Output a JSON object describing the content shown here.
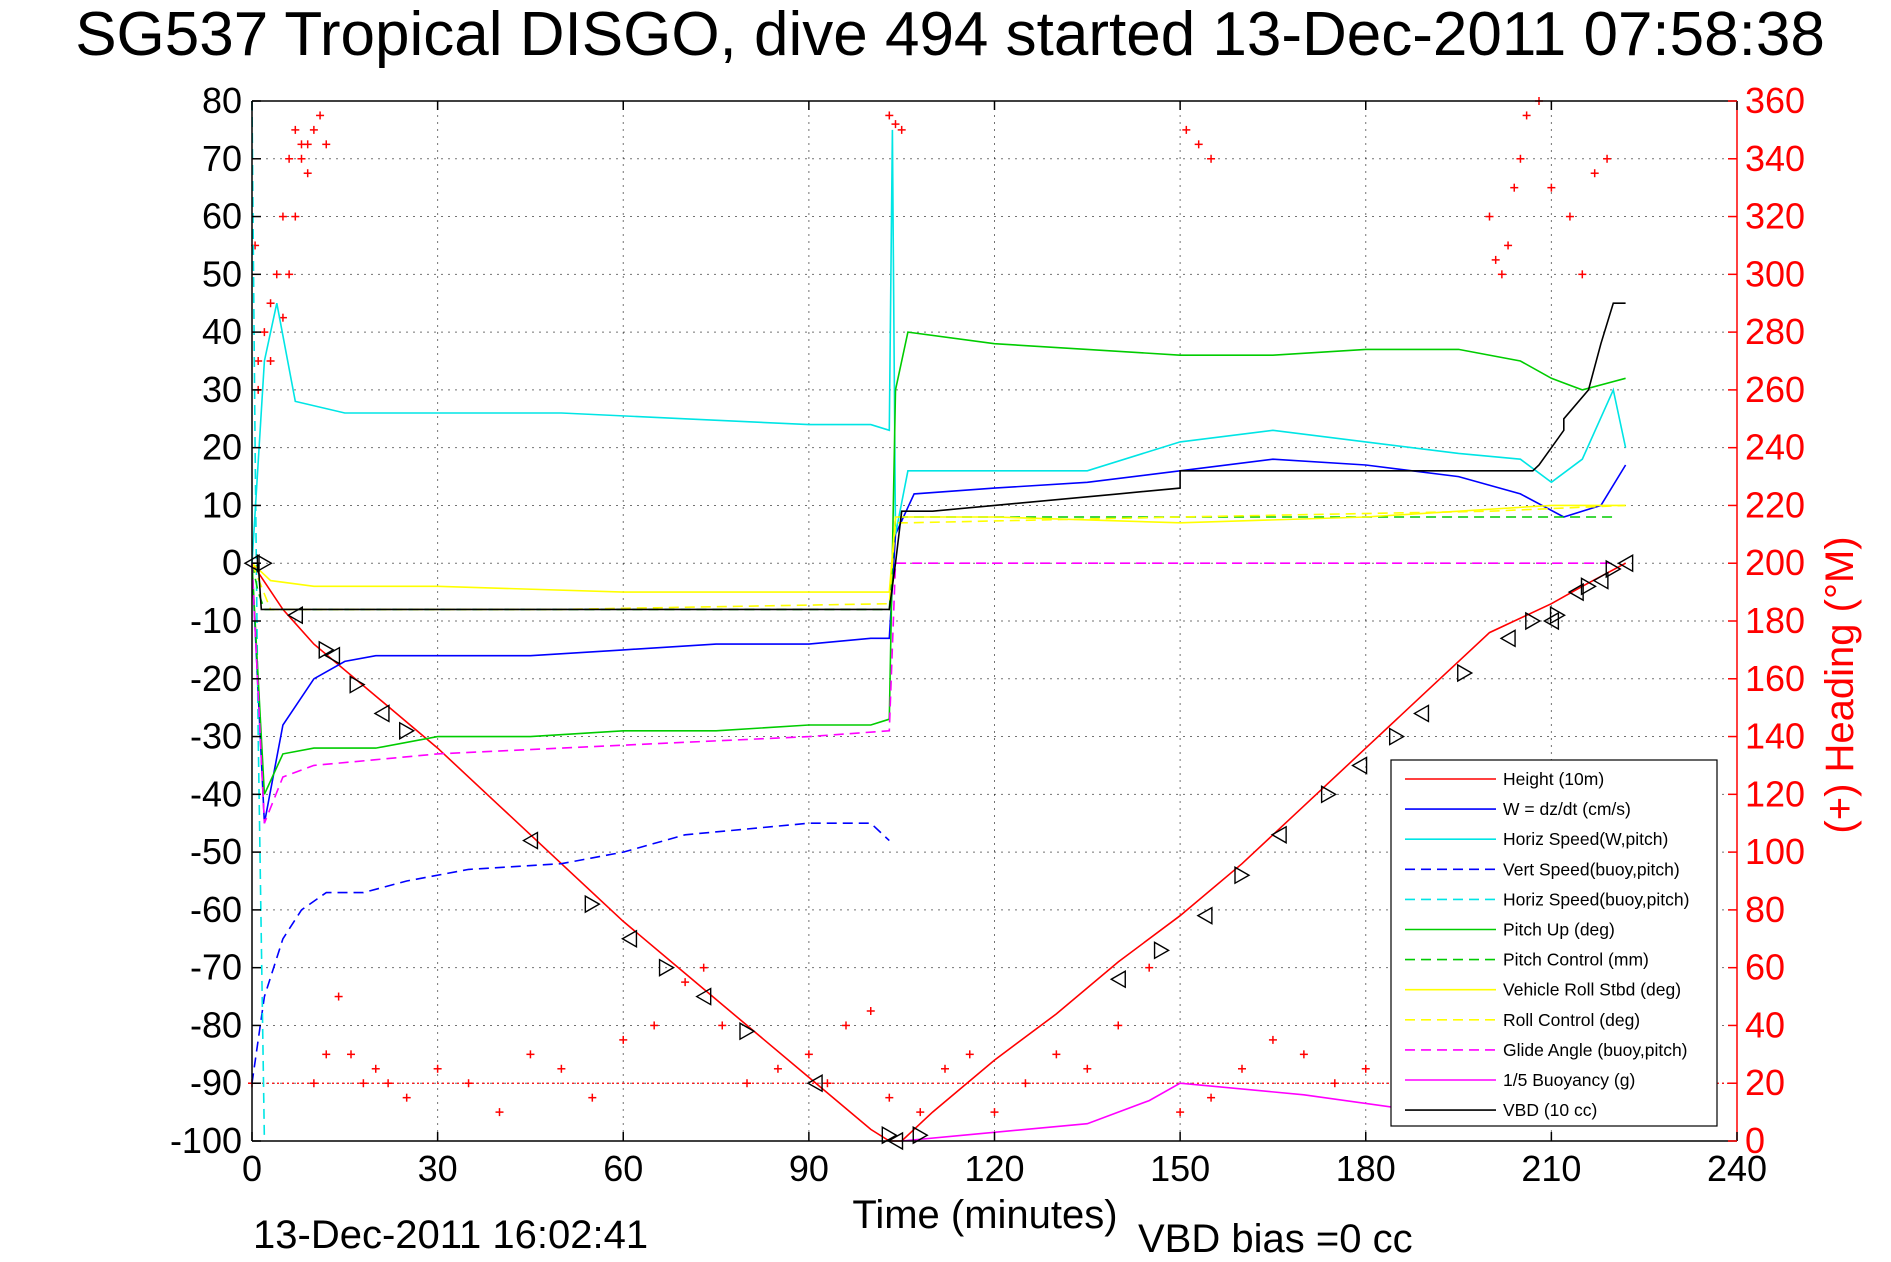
{
  "chart_data": {
    "type": "line",
    "title": "SG537 Tropical DISGO, dive 494 started 13-Dec-2011 07:58:38",
    "xlabel": "Time (minutes)",
    "ylabel": "",
    "y2label": "(+) Heading (°M)",
    "footer_left": "13-Dec-2011 16:02:41",
    "footer_right": "VBD bias =0 cc",
    "xlim": [
      0,
      240
    ],
    "ylim": [
      -100,
      80
    ],
    "y2lim": [
      0,
      360
    ],
    "xticks": [
      0,
      30,
      60,
      90,
      120,
      150,
      180,
      210,
      240
    ],
    "yticks": [
      80,
      70,
      60,
      50,
      40,
      30,
      20,
      10,
      0,
      -10,
      -20,
      -30,
      -40,
      -50,
      -60,
      -70,
      -80,
      -90,
      -100
    ],
    "y2ticks": [
      360,
      340,
      320,
      300,
      280,
      260,
      240,
      220,
      200,
      180,
      160,
      140,
      120,
      100,
      80,
      60,
      40,
      20,
      0
    ],
    "grid": true,
    "legend_position": "bottom-right",
    "series": [
      {
        "name": "Height (10m)",
        "color": "#ff0000",
        "dash": "solid",
        "x": [
          0,
          5,
          10,
          20,
          30,
          40,
          50,
          60,
          70,
          80,
          90,
          100,
          103,
          105,
          110,
          120,
          130,
          140,
          150,
          160,
          170,
          180,
          190,
          200,
          210,
          215,
          222
        ],
        "y": [
          0,
          -8,
          -14,
          -23,
          -32,
          -42,
          -52,
          -62,
          -71,
          -80,
          -89,
          -98,
          -100,
          -100,
          -95,
          -86,
          -78,
          -69,
          -61,
          -52,
          -42,
          -32,
          -22,
          -12,
          -7,
          -4,
          0
        ]
      },
      {
        "name": "W = dz/dt (cm/s)",
        "color": "#0000ff",
        "dash": "solid",
        "x": [
          0,
          2,
          5,
          10,
          15,
          20,
          30,
          45,
          60,
          75,
          90,
          100,
          103,
          104,
          107,
          120,
          135,
          150,
          165,
          180,
          195,
          205,
          212,
          218,
          222
        ],
        "y": [
          0,
          -45,
          -28,
          -20,
          -17,
          -16,
          -16,
          -16,
          -15,
          -14,
          -14,
          -13,
          -13,
          5,
          12,
          13,
          14,
          16,
          18,
          17,
          15,
          12,
          8,
          10,
          17
        ]
      },
      {
        "name": "Horiz Speed(W,pitch)",
        "color": "#00e5e5",
        "dash": "solid",
        "x": [
          0,
          2,
          4,
          7,
          15,
          30,
          50,
          70,
          90,
          100,
          103,
          103.5,
          104,
          106,
          120,
          135,
          150,
          165,
          180,
          195,
          205,
          210,
          215,
          220,
          222
        ],
        "y": [
          0,
          35,
          45,
          28,
          26,
          26,
          26,
          25,
          24,
          24,
          23,
          75,
          5,
          16,
          16,
          16,
          21,
          23,
          21,
          19,
          18,
          14,
          18,
          30,
          20
        ]
      },
      {
        "name": "Vert Speed(buoy,pitch)",
        "color": "#0000ff",
        "dash": "dashed",
        "x": [
          0,
          2,
          5,
          8,
          12,
          18,
          25,
          35,
          50,
          60,
          70,
          80,
          90,
          100,
          103
        ],
        "y": [
          -90,
          -75,
          -65,
          -60,
          -57,
          -57,
          -55,
          -53,
          -52,
          -50,
          -47,
          -46,
          -45,
          -45,
          -48
        ]
      },
      {
        "name": "Horiz Speed(buoy,pitch)",
        "color": "#00e5e5",
        "dash": "dashed",
        "x": [
          0,
          0.5,
          1,
          2
        ],
        "y": [
          80,
          20,
          -30,
          -100
        ]
      },
      {
        "name": "Pitch Up (deg)",
        "color": "#00cc00",
        "dash": "solid",
        "x": [
          0,
          2,
          5,
          10,
          20,
          30,
          45,
          60,
          75,
          90,
          100,
          103,
          104,
          106,
          120,
          135,
          150,
          165,
          180,
          195,
          205,
          210,
          215,
          222
        ],
        "y": [
          0,
          -40,
          -33,
          -32,
          -32,
          -30,
          -30,
          -29,
          -29,
          -28,
          -28,
          -27,
          30,
          40,
          38,
          37,
          36,
          36,
          37,
          37,
          35,
          32,
          30,
          32
        ]
      },
      {
        "name": "Pitch Control (mm)",
        "color": "#00cc00",
        "dash": "dashed",
        "x": [
          0,
          1,
          2,
          3,
          5,
          100,
          103,
          104,
          106,
          150,
          180,
          210,
          220
        ],
        "y": [
          0,
          -5,
          -8,
          -8,
          -8,
          -8,
          -8,
          8,
          8,
          8,
          8,
          8,
          8
        ]
      },
      {
        "name": "Vehicle Roll Stbd (deg)",
        "color": "#ffff00",
        "dash": "solid",
        "x": [
          0,
          3,
          10,
          30,
          60,
          90,
          103,
          104,
          106,
          120,
          150,
          180,
          210,
          222
        ],
        "y": [
          0,
          -3,
          -4,
          -4,
          -5,
          -5,
          -5,
          8,
          8,
          8,
          7,
          8,
          10,
          10
        ]
      },
      {
        "name": "Roll Control (deg)",
        "color": "#ffff00",
        "dash": "dashed",
        "x": [
          0,
          3,
          50,
          103,
          104,
          106,
          150,
          200,
          222
        ],
        "y": [
          0,
          -8,
          -8,
          -7,
          7,
          7,
          8,
          9,
          10
        ]
      },
      {
        "name": "Glide Angle (buoy,pitch)",
        "color": "#ff00ff",
        "dash": "dashed",
        "x": [
          0,
          2,
          5,
          10,
          20,
          30,
          50,
          70,
          90,
          103,
          104,
          106,
          150,
          220
        ],
        "y": [
          0,
          -45,
          -37,
          -35,
          -34,
          -33,
          -32,
          -31,
          -30,
          -29,
          0,
          0,
          0,
          0
        ]
      },
      {
        "name": "1/5 Buoyancy (g)",
        "color": "#ff00ff",
        "dash": "solid",
        "x": [
          105,
          115,
          125,
          135,
          145,
          150,
          170,
          190,
          200
        ],
        "y": [
          -100,
          -99,
          -98,
          -97,
          -93,
          -90,
          -92,
          -95,
          -97
        ]
      },
      {
        "name": "VBD (10 cc)",
        "color": "#000000",
        "dash": "solid",
        "x": [
          0,
          1,
          1.5,
          2,
          103,
          103,
          104,
          105,
          110,
          120,
          140,
          140,
          150,
          150,
          180,
          207,
          208,
          210,
          212,
          212,
          216,
          218,
          220,
          222
        ],
        "y": [
          0,
          0,
          -8,
          -8,
          -8,
          -8,
          0,
          9,
          9,
          10,
          12,
          12,
          13,
          16,
          16,
          16,
          17,
          20,
          23,
          25,
          30,
          38,
          45,
          45
        ]
      }
    ],
    "heading": {
      "name": "(+) Heading (°M)",
      "color": "#ff0000",
      "axis": "right",
      "x": [
        0,
        1,
        2,
        3,
        4,
        5,
        6,
        7,
        8,
        9,
        10,
        12,
        14,
        16,
        18,
        20,
        22,
        25,
        30,
        35,
        40,
        45,
        50,
        55,
        60,
        65,
        70,
        73,
        76,
        80,
        85,
        90,
        93,
        96,
        100,
        103,
        108,
        112,
        116,
        120,
        125,
        130,
        135,
        140,
        145,
        150,
        155,
        160,
        165,
        170,
        175,
        180,
        185,
        190,
        195,
        200,
        205,
        210,
        215,
        220
      ],
      "y": [
        20,
        270,
        280,
        290,
        300,
        320,
        340,
        350,
        345,
        335,
        20,
        30,
        50,
        30,
        20,
        25,
        20,
        15,
        25,
        20,
        10,
        30,
        25,
        15,
        35,
        40,
        55,
        60,
        40,
        20,
        25,
        30,
        20,
        40,
        45,
        15,
        10,
        25,
        30,
        10,
        20,
        30,
        25,
        40,
        60,
        10,
        15,
        25,
        35,
        30,
        20,
        25,
        40,
        20,
        10,
        20,
        30,
        25,
        15,
        20
      ]
    },
    "heading_upper": {
      "x": [
        0.5,
        1,
        3,
        5,
        6,
        7,
        8,
        9,
        10,
        11,
        12,
        103,
        104,
        105,
        151,
        153,
        155,
        200,
        201,
        202,
        203,
        204,
        205,
        206,
        208,
        210,
        213,
        215,
        217,
        219
      ],
      "y": [
        310,
        260,
        270,
        285,
        300,
        320,
        340,
        345,
        350,
        355,
        345,
        355,
        352,
        350,
        350,
        345,
        340,
        320,
        305,
        300,
        310,
        330,
        340,
        355,
        360,
        330,
        320,
        300,
        335,
        340
      ]
    },
    "dive_markers": {
      "x": [
        0,
        2,
        7,
        12,
        13,
        17,
        21,
        25,
        45,
        55,
        61,
        67,
        73,
        80,
        91,
        103,
        104,
        108,
        140,
        147,
        154,
        160,
        166,
        174,
        179,
        185,
        189,
        196,
        203,
        207,
        210,
        211,
        214,
        216,
        218,
        220,
        222
      ],
      "y": [
        0,
        0,
        -9,
        -15,
        -16,
        -21,
        -26,
        -29,
        -48,
        -59,
        -65,
        -70,
        -75,
        -81,
        -90,
        -99,
        -100,
        -99,
        -72,
        -67,
        -61,
        -54,
        -47,
        -40,
        -35,
        -30,
        -26,
        -19,
        -13,
        -10,
        -10,
        -9,
        -5,
        -4,
        -3,
        -1,
        0
      ]
    }
  }
}
